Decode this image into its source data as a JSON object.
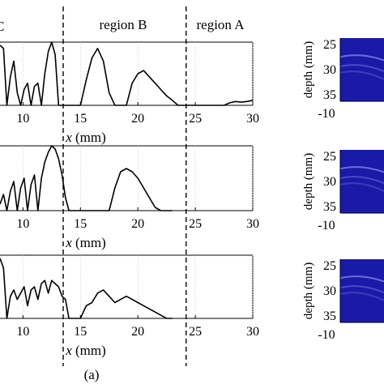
{
  "figure": {
    "caption": "(a)",
    "region_labels": [
      "C",
      "region B",
      "region A"
    ],
    "colors": {
      "ink": "#000000",
      "bmode_background": "#1a1aa8",
      "bmode_echo": "#9aa8ff"
    }
  },
  "chart_data": [
    {
      "type": "line",
      "xlabel": "x (mm)",
      "xlim": [
        8,
        30
      ],
      "ylim": [
        0,
        1
      ],
      "x_ticks": [
        10,
        15,
        20,
        25,
        30
      ],
      "boundaries_x": [
        13.5,
        24.2
      ],
      "series": [
        {
          "x": [
            8,
            8.3,
            8.6,
            8.9,
            9.2,
            9.5,
            9.8,
            10.1,
            10.4,
            10.7,
            11,
            11.3,
            11.6,
            11.9,
            12.2,
            12.5,
            12.8,
            13.1,
            13.4,
            13.7,
            14,
            14.5,
            15,
            15.5,
            16,
            16.5,
            17,
            17.5,
            18,
            18.5,
            19,
            19.5,
            20,
            20.5,
            21,
            21.5,
            22,
            22.5,
            23,
            23.5,
            24,
            24.5,
            25,
            25.5,
            26,
            26.5,
            27,
            27.5,
            28,
            28.5,
            29,
            29.5,
            30
          ],
          "y": [
            0.95,
            0.9,
            0,
            0.45,
            0.7,
            0.2,
            0,
            0.25,
            0.35,
            0,
            0.3,
            0.35,
            0,
            0.5,
            0.85,
            1.0,
            0.8,
            0,
            0,
            0,
            0,
            0,
            0,
            0.4,
            0.75,
            0.9,
            0.7,
            0.2,
            0,
            0,
            0,
            0.35,
            0.5,
            0.55,
            0.45,
            0.35,
            0.25,
            0.15,
            0.08,
            0,
            0,
            0,
            0,
            0,
            0,
            0,
            0,
            0,
            0.04,
            0.06,
            0.05,
            0.06,
            0.08
          ]
        }
      ]
    },
    {
      "type": "line",
      "xlabel": "x (mm)",
      "xlim": [
        8,
        30
      ],
      "ylim": [
        0,
        1
      ],
      "x_ticks": [
        10,
        15,
        20,
        25,
        30
      ],
      "boundaries_x": [
        13.5,
        24.2
      ],
      "series": [
        {
          "x": [
            8,
            8.3,
            8.6,
            8.9,
            9.2,
            9.5,
            9.8,
            10.1,
            10.4,
            10.7,
            11,
            11.3,
            11.6,
            11.9,
            12.2,
            12.5,
            12.8,
            13.1,
            13.4,
            13.7,
            14,
            14.5,
            15,
            15.5,
            16,
            16.5,
            17,
            17.5,
            18,
            18.5,
            19,
            19.5,
            20,
            20.5,
            21,
            21.5,
            22,
            22.5,
            23
          ],
          "y": [
            0.1,
            0.25,
            0,
            0.3,
            0.45,
            0,
            0.35,
            0.5,
            0,
            0.4,
            0.55,
            0,
            0.5,
            0.75,
            0.9,
            1.0,
            0.95,
            0.8,
            0.55,
            0.2,
            0,
            0,
            0,
            0,
            0,
            0,
            0,
            0,
            0.35,
            0.6,
            0.65,
            0.6,
            0.5,
            0.35,
            0.2,
            0.05,
            0,
            0,
            0
          ]
        }
      ]
    },
    {
      "type": "line",
      "xlabel": "x (mm)",
      "xlim": [
        8,
        30
      ],
      "ylim": [
        0,
        1
      ],
      "x_ticks": [
        10,
        15,
        20,
        25,
        30
      ],
      "boundaries_x": [
        13.5,
        24.2
      ],
      "series": [
        {
          "x": [
            8,
            8.3,
            8.6,
            8.9,
            9.2,
            9.5,
            9.8,
            10.1,
            10.4,
            10.7,
            11,
            11.3,
            11.6,
            11.9,
            12.2,
            12.5,
            12.8,
            13.1,
            13.4,
            13.7,
            14,
            14.5,
            15,
            15.5,
            16,
            16.5,
            17,
            17.5,
            18,
            18.5,
            19,
            19.5,
            20,
            20.5,
            21,
            21.5,
            22,
            22.5,
            23
          ],
          "y": [
            0.95,
            0.8,
            0,
            0.35,
            0.45,
            0.3,
            0.4,
            0.5,
            0.2,
            0.45,
            0.5,
            0.3,
            0.55,
            0.6,
            0.4,
            0.6,
            0.55,
            0.5,
            0.35,
            0.3,
            0,
            0,
            0,
            0.2,
            0.25,
            0.4,
            0.45,
            0.35,
            0.25,
            0.3,
            0.35,
            0.3,
            0.25,
            0.2,
            0.15,
            0.1,
            0.05,
            0,
            0
          ]
        }
      ]
    }
  ],
  "bmode": [
    {
      "ylabel": "depth (mm)",
      "y_ticks": [
        "25",
        "30",
        "35"
      ],
      "x_tick": "-10"
    },
    {
      "ylabel": "depth (mm)",
      "y_ticks": [
        "25",
        "30",
        "35"
      ],
      "x_tick": "-10"
    },
    {
      "ylabel": "depth (mm)",
      "y_ticks": [
        "25",
        "30",
        "35"
      ],
      "x_tick": "-10"
    }
  ]
}
